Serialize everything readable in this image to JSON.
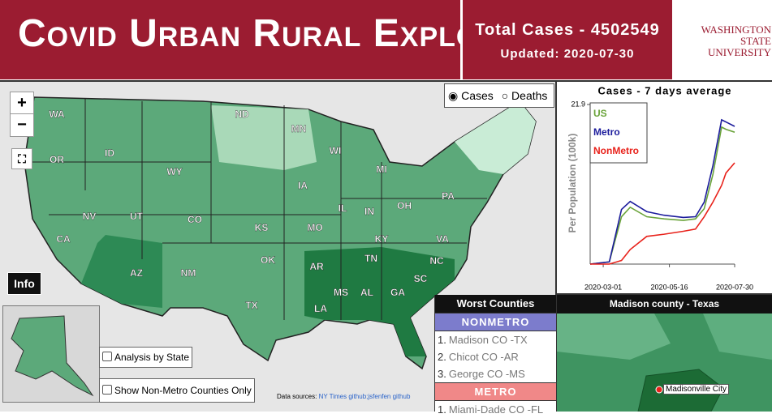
{
  "header": {
    "title": "Covid Urban Rural Explorer",
    "total_label": "Total Cases -",
    "total_cases": 4502549,
    "updated": "Updated: 2020-07-30",
    "logo_top": "Washington State",
    "logo_bottom": "University"
  },
  "map": {
    "zoom_in": "+",
    "zoom_out": "−",
    "info": "Info",
    "metric_options": [
      "Cases",
      "Deaths"
    ],
    "analysis_by_state": "Analysis by State",
    "non_metro_only": "Show Non-Metro Counties Only",
    "data_sources_label": "Data sources:",
    "data_sources": "NY Times github;jsfenfen github",
    "state_labels": [
      "WA",
      "ND",
      "MN",
      "OR",
      "ID",
      "WY",
      "WI",
      "MI",
      "IA",
      "NV",
      "UT",
      "CO",
      "IL",
      "IN",
      "OH",
      "PA",
      "KS",
      "MO",
      "KY",
      "VA",
      "CA",
      "OK",
      "AR",
      "TN",
      "NC",
      "AZ",
      "NM",
      "SC",
      "MS",
      "AL",
      "GA",
      "TX",
      "LA"
    ]
  },
  "chart_data": {
    "type": "line",
    "title": "Cases - 7 days average",
    "y_label": "Per Population (100k)",
    "x": [
      "2020-02-15",
      "2020-03-08",
      "2020-03-22",
      "2020-04-01",
      "2020-04-20",
      "2020-05-10",
      "2020-06-01",
      "2020-06-15",
      "2020-06-25",
      "2020-07-05",
      "2020-07-15",
      "2020-07-20",
      "2020-07-30"
    ],
    "xlim": [
      "2020-02-15",
      "2020-07-30"
    ],
    "xticks": [
      "2020-03-01",
      "2020-05-16",
      "2020-07-30"
    ],
    "ylim": [
      0,
      21.9
    ],
    "yticks": [
      21.9
    ],
    "series": [
      {
        "name": "US",
        "color": "#6aa33a",
        "values": [
          0,
          0.3,
          6.5,
          7.8,
          6.5,
          6.2,
          6.0,
          6.2,
          7.6,
          12.3,
          18.8,
          18.5,
          18.1
        ]
      },
      {
        "name": "Metro",
        "color": "#1c1c9c",
        "values": [
          0,
          0.3,
          7.5,
          8.6,
          7.2,
          6.7,
          6.4,
          6.5,
          8.5,
          13.5,
          19.8,
          19.5,
          18.9
        ]
      },
      {
        "name": "NonMetro",
        "color": "#e8221b",
        "values": [
          0,
          0,
          0.5,
          2.0,
          3.8,
          4.1,
          4.5,
          4.8,
          6.5,
          8.5,
          10.8,
          12.5,
          13.9
        ]
      }
    ]
  },
  "worst_counties": {
    "title": "Worst Counties",
    "groups": [
      {
        "name": "NONMETRO",
        "items": [
          {
            "rank": "1.",
            "name": "Madison CO -TX"
          },
          {
            "rank": "2.",
            "name": "Chicot CO -AR"
          },
          {
            "rank": "3.",
            "name": "George CO -MS"
          }
        ]
      },
      {
        "name": "METRO",
        "items": [
          {
            "rank": "1.",
            "name": "Miami-Dade CO -FL"
          }
        ]
      }
    ]
  },
  "county_map": {
    "title": "Madison county - Texas",
    "city": "Madisonville City"
  }
}
